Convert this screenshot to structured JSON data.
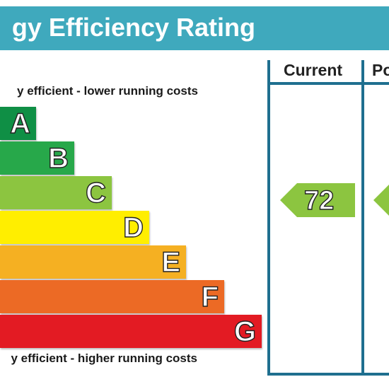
{
  "title": "gy Efficiency Rating",
  "caption_top": "y efficient - lower running costs",
  "caption_bottom": "y efficient - higher running costs",
  "bands": [
    {
      "letter": "A",
      "color": "#0f8f45"
    },
    {
      "letter": "B",
      "color": "#27a84a"
    },
    {
      "letter": "C",
      "color": "#8cc540"
    },
    {
      "letter": "D",
      "color": "#ffee00"
    },
    {
      "letter": "E",
      "color": "#f5b022"
    },
    {
      "letter": "F",
      "color": "#ec6a25"
    },
    {
      "letter": "G",
      "color": "#e31b23"
    }
  ],
  "columns": {
    "current_label": "Current",
    "potential_label": "Po"
  },
  "current_rating": "72",
  "current_rating_color": "#8cc540",
  "potential_rating_color": "#8cc540"
}
